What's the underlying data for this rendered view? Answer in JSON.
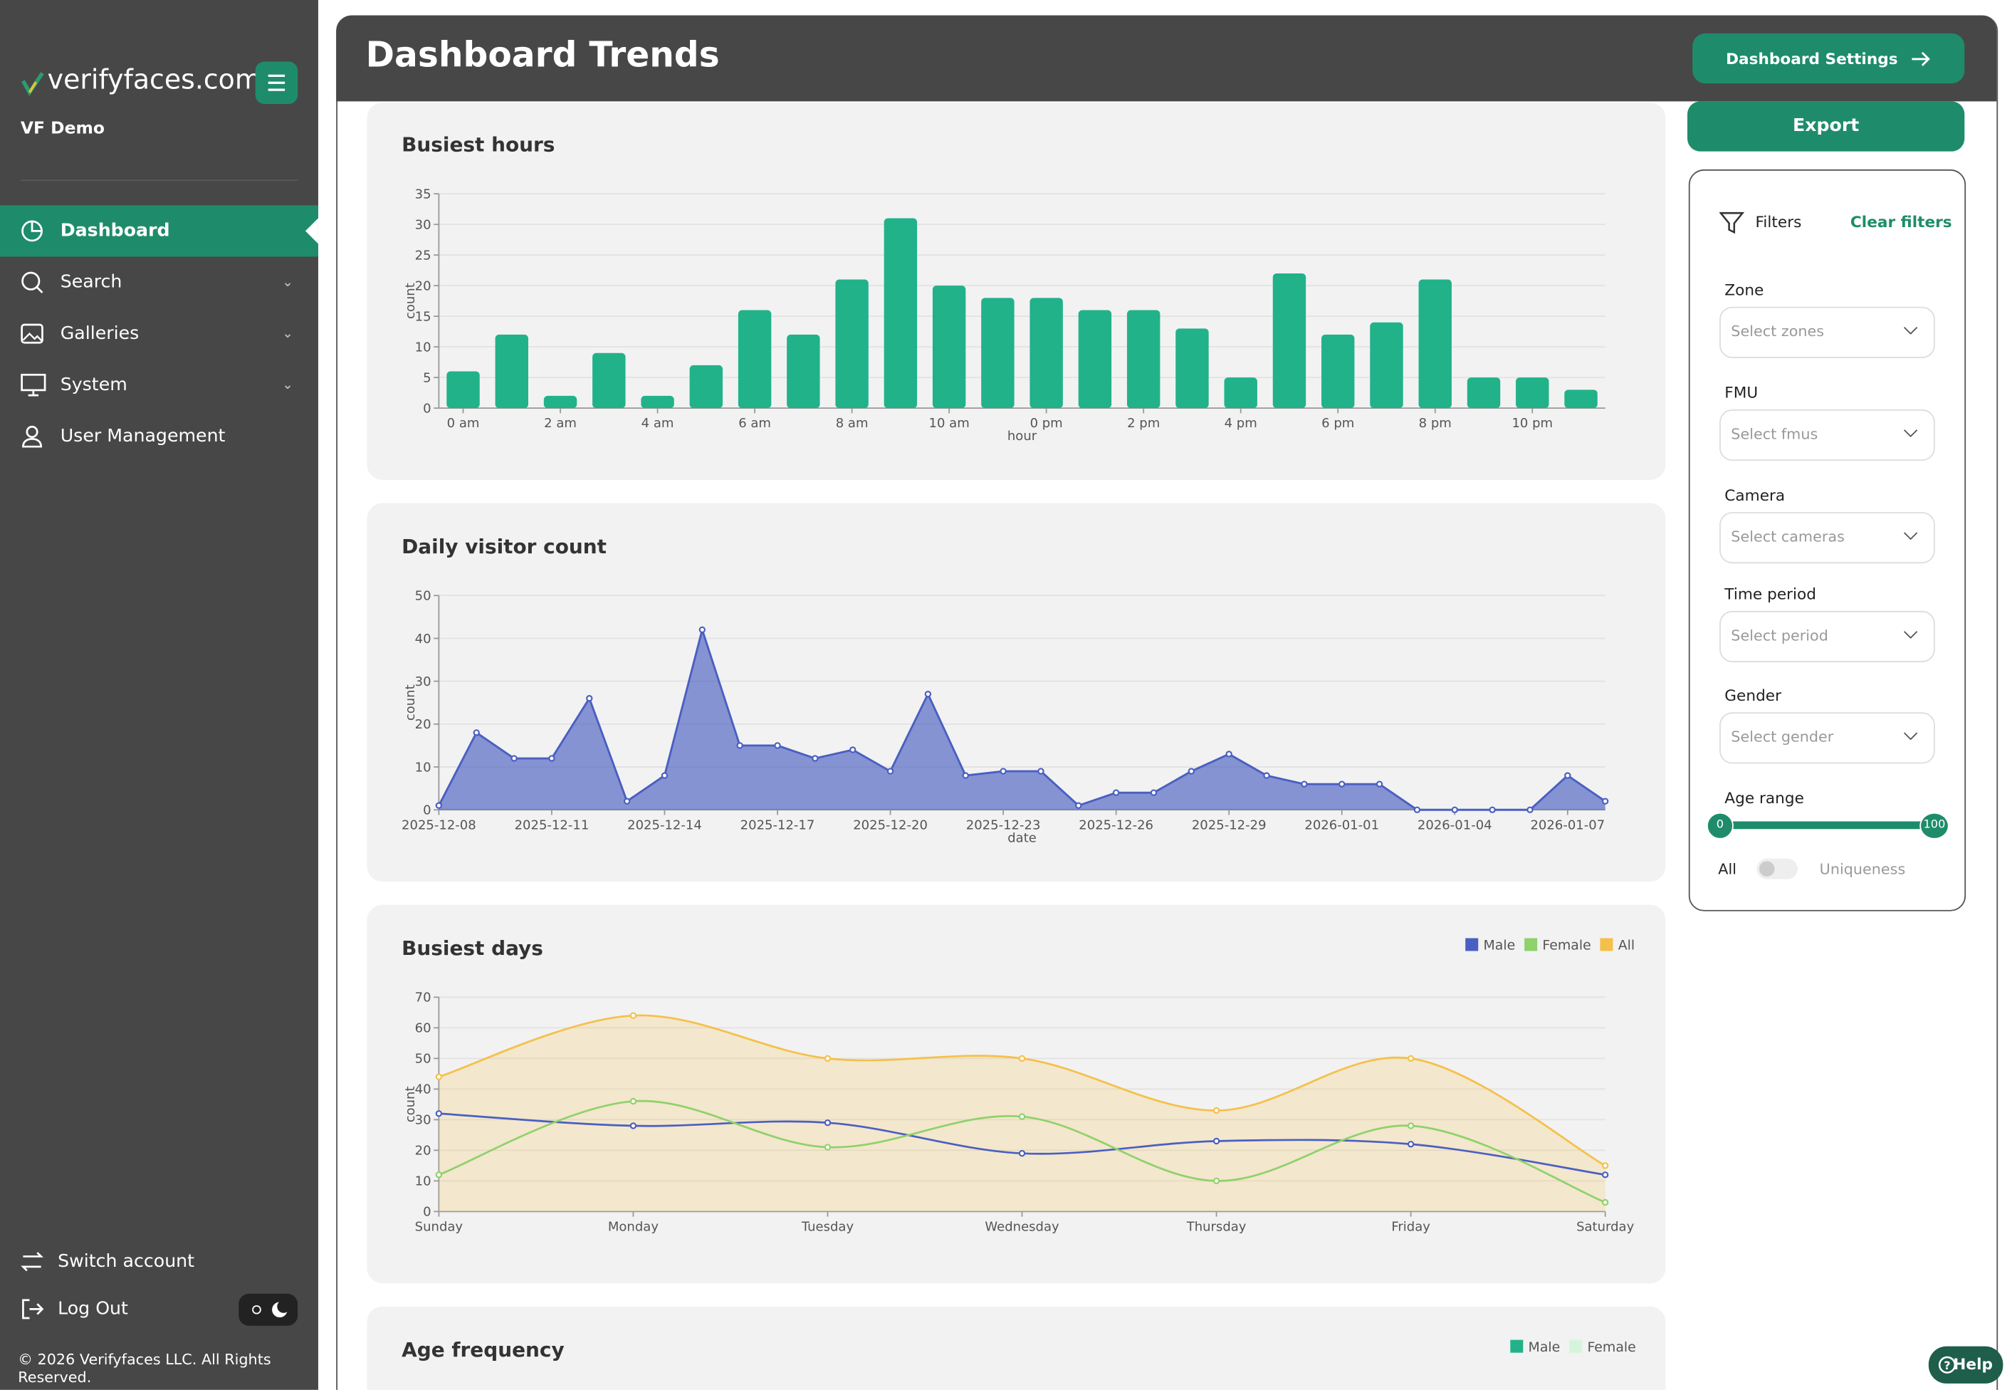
{
  "sidebar": {
    "brand": "verifyfaces.com",
    "account": "VF Demo",
    "nav": [
      "Dashboard",
      "Search",
      "Galleries",
      "System",
      "User Management"
    ],
    "footer_nav": [
      "Switch account",
      "Log Out"
    ],
    "copyright": "© 2026 Verifyfaces LLC. All Rights Reserved."
  },
  "header": {
    "title": "Dashboard Trends",
    "settings_button": "Dashboard Settings"
  },
  "chart_data": [
    {
      "type": "bar",
      "title": "Busiest hours",
      "x_label": "hour",
      "y_label": "count",
      "color": "#21b28a",
      "grid": true,
      "categories": [
        "0 am",
        null,
        "2 am",
        null,
        "4 am",
        null,
        "6 am",
        null,
        "8 am",
        null,
        "10 am",
        null,
        "0 pm",
        null,
        "2 pm",
        null,
        "4 pm",
        null,
        "6 pm",
        null,
        "8 pm",
        null,
        "10 pm",
        null
      ],
      "values": [
        6,
        12,
        2,
        9,
        2,
        7,
        16,
        12,
        21,
        31,
        20,
        18,
        18,
        16,
        16,
        13,
        5,
        22,
        12,
        14,
        21,
        5,
        5,
        3
      ],
      "ylim": [
        0,
        35
      ],
      "yticks": [
        0,
        5,
        10,
        15,
        20,
        25,
        30,
        35
      ]
    },
    {
      "type": "area",
      "title": "Daily visitor count",
      "x_label": "date",
      "y_label": "count",
      "color": "#4a5fc1",
      "grid": true,
      "categories": [
        "2025-12-08",
        null,
        null,
        "2025-12-11",
        null,
        null,
        "2025-12-14",
        null,
        null,
        "2025-12-17",
        null,
        null,
        "2025-12-20",
        null,
        null,
        "2025-12-23",
        null,
        null,
        "2025-12-26",
        null,
        null,
        "2025-12-29",
        null,
        null,
        "2026-01-01",
        null,
        null,
        "2026-01-04",
        null,
        null,
        "2026-01-07",
        null
      ],
      "values": [
        1,
        18,
        12,
        12,
        26,
        2,
        8,
        42,
        15,
        15,
        12,
        14,
        9,
        27,
        8,
        9,
        9,
        1,
        4,
        4,
        9,
        13,
        8,
        6,
        6,
        6,
        0,
        0,
        0,
        0,
        8,
        2
      ],
      "ylim": [
        0,
        50
      ],
      "yticks": [
        0,
        10,
        20,
        30,
        40,
        50
      ]
    },
    {
      "type": "line",
      "title": "Busiest days",
      "y_label": "count",
      "grid": true,
      "legend": "top-right",
      "categories": [
        "Sunday",
        "Monday",
        "Tuesday",
        "Wednesday",
        "Thursday",
        "Friday",
        "Saturday"
      ],
      "series": [
        {
          "name": "Male",
          "color": "#4a5fc1",
          "values": [
            32,
            28,
            29,
            19,
            23,
            22,
            12
          ]
        },
        {
          "name": "Female",
          "color": "#8fd16b",
          "values": [
            12,
            36,
            21,
            31,
            10,
            28,
            3
          ]
        },
        {
          "name": "All",
          "color": "#f5c04a",
          "fill": true,
          "values": [
            44,
            64,
            50,
            50,
            33,
            50,
            15
          ]
        }
      ],
      "ylim": [
        0,
        70
      ],
      "yticks": [
        0,
        10,
        20,
        30,
        40,
        50,
        60,
        70
      ]
    },
    {
      "type": "bar",
      "title": "Age frequency",
      "legend": "top-right",
      "series": [
        {
          "name": "Male",
          "color": "#21b28a"
        },
        {
          "name": "Female",
          "color": "#d4f5dc"
        }
      ]
    }
  ],
  "filters": {
    "export": "Export",
    "title": "Filters",
    "clear": "Clear filters",
    "fields": [
      {
        "label": "Zone",
        "placeholder": "Select zones"
      },
      {
        "label": "FMU",
        "placeholder": "Select fmus"
      },
      {
        "label": "Camera",
        "placeholder": "Select cameras"
      },
      {
        "label": "Time period",
        "placeholder": "Select period"
      },
      {
        "label": "Gender",
        "placeholder": "Select gender"
      }
    ],
    "age_range": {
      "label": "Age range",
      "min": 0,
      "max": 100
    },
    "toggle": {
      "left": "All",
      "right": "Uniqueness"
    }
  },
  "help": "Help"
}
